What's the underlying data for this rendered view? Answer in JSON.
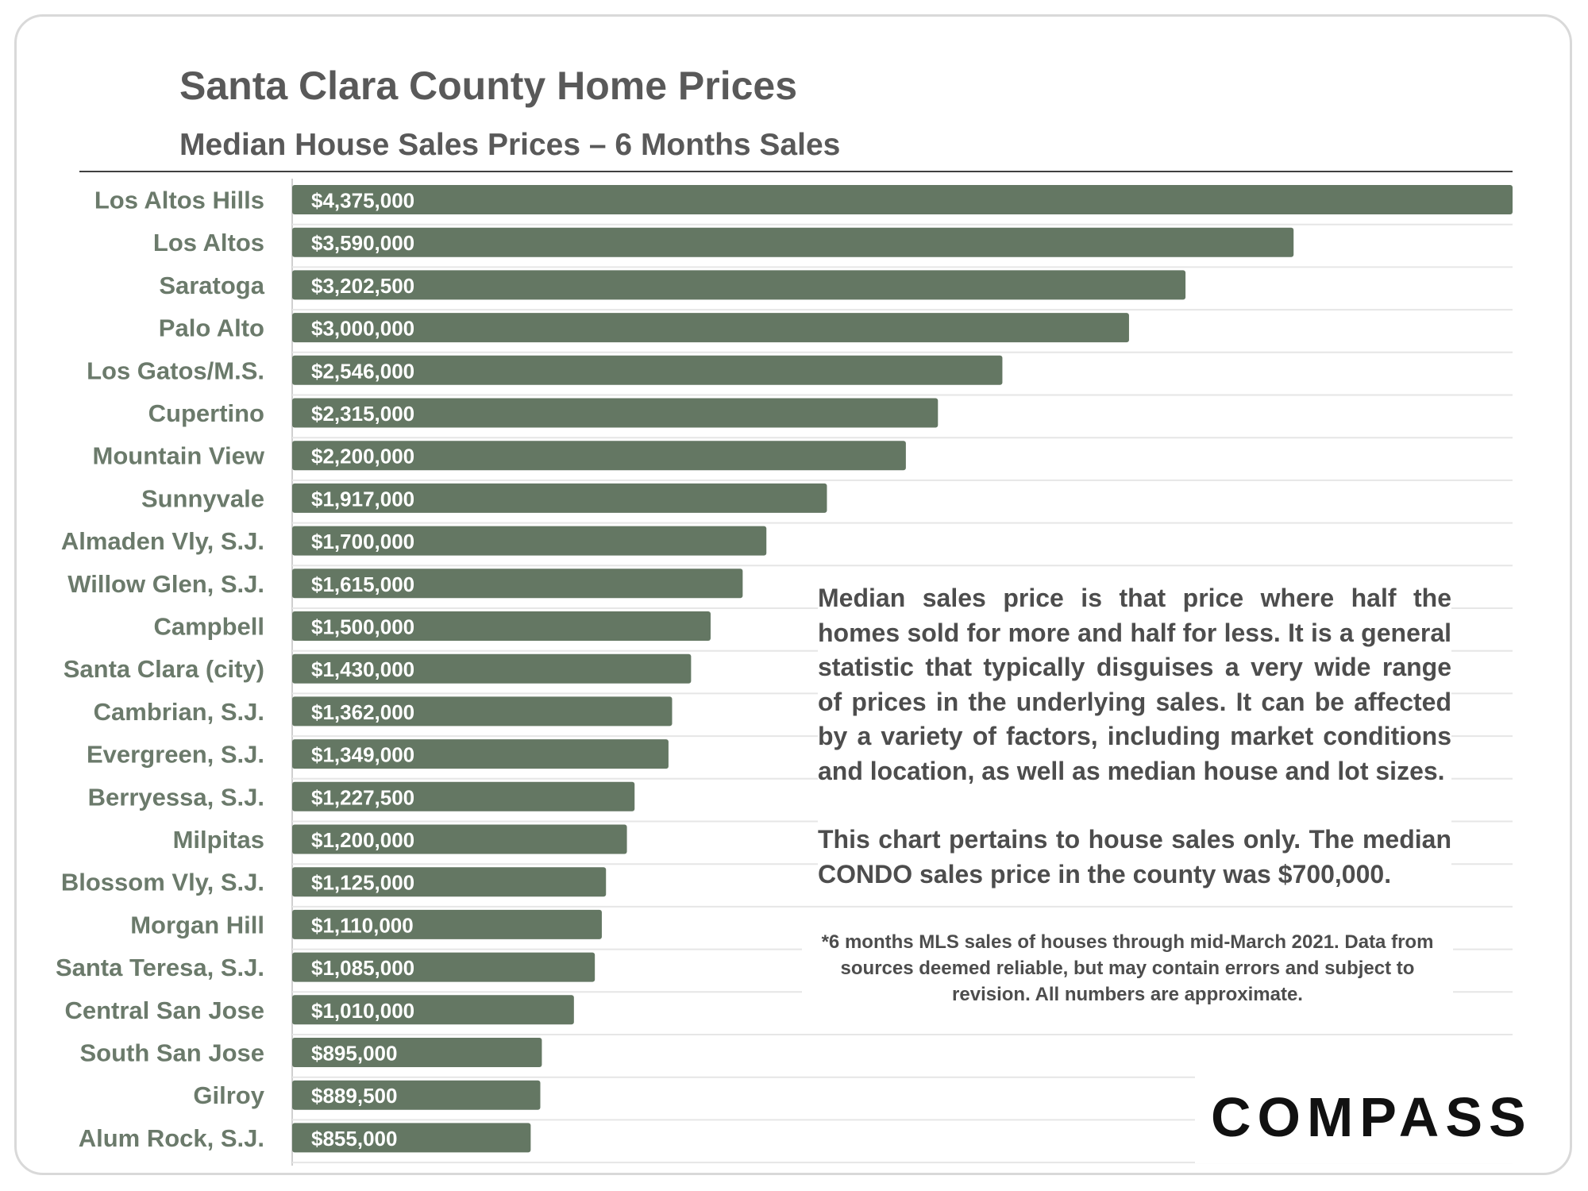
{
  "chart_data": {
    "type": "bar",
    "orientation": "horizontal",
    "title": "Santa Clara County Home Prices",
    "subtitle": "Median House Sales Prices – 6 Months Sales",
    "categories": [
      "Los Altos Hills",
      "Los Altos",
      "Saratoga",
      "Palo Alto",
      "Los Gatos/M.S.",
      "Cupertino",
      "Mountain View",
      "Sunnyvale",
      "Almaden Vly, S.J.",
      "Willow Glen, S.J.",
      "Campbell",
      "Santa Clara (city)",
      "Cambrian, S.J.",
      "Evergreen, S.J.",
      "Berryessa, S.J.",
      "Milpitas",
      "Blossom Vly, S.J.",
      "Morgan Hill",
      "Santa Teresa, S.J.",
      "Central San Jose",
      "South San Jose",
      "Gilroy",
      "Alum Rock, S.J."
    ],
    "values": [
      4375000,
      3590000,
      3202500,
      3000000,
      2546000,
      2315000,
      2200000,
      1917000,
      1700000,
      1615000,
      1500000,
      1430000,
      1362000,
      1349000,
      1227500,
      1200000,
      1125000,
      1110000,
      1085000,
      1010000,
      895000,
      889500,
      855000
    ],
    "value_labels": [
      "$4,375,000",
      "$3,590,000",
      "$3,202,500",
      "$3,000,000",
      "$2,546,000",
      "$2,315,000",
      "$2,200,000",
      "$1,917,000",
      "$1,700,000",
      "$1,615,000",
      "$1,500,000",
      "$1,430,000",
      "$1,362,000",
      "$1,349,000",
      "$1,227,500",
      "$1,200,000",
      "$1,125,000",
      "$1,110,000",
      "$1,085,000",
      "$1,010,000",
      "$895,000",
      "$889,500",
      "$855,000"
    ],
    "xlim": [
      0,
      4375000
    ],
    "bar_color": "#647763",
    "grid": true,
    "legend": "none"
  },
  "annotation": {
    "paragraph1": "Median sales price is that price where half the homes sold for more and half for less. It is a general statistic that typically disguises a very wide range of prices in the underlying sales. It can be affected by a variety of factors, including market conditions and location, as well as median house and lot sizes.",
    "paragraph2": "This chart pertains to house sales only. The median CONDO sales price in the county was $700,000."
  },
  "footnote": "*6 months MLS sales of houses through mid-March 2021. Data from sources deemed reliable, but may contain errors and subject to revision. All numbers are approximate.",
  "logo_text": "COMPASS",
  "colors": {
    "bar": "#647763",
    "label": "#6b7a6b",
    "title": "#595959",
    "text": "#4d4d4d"
  }
}
